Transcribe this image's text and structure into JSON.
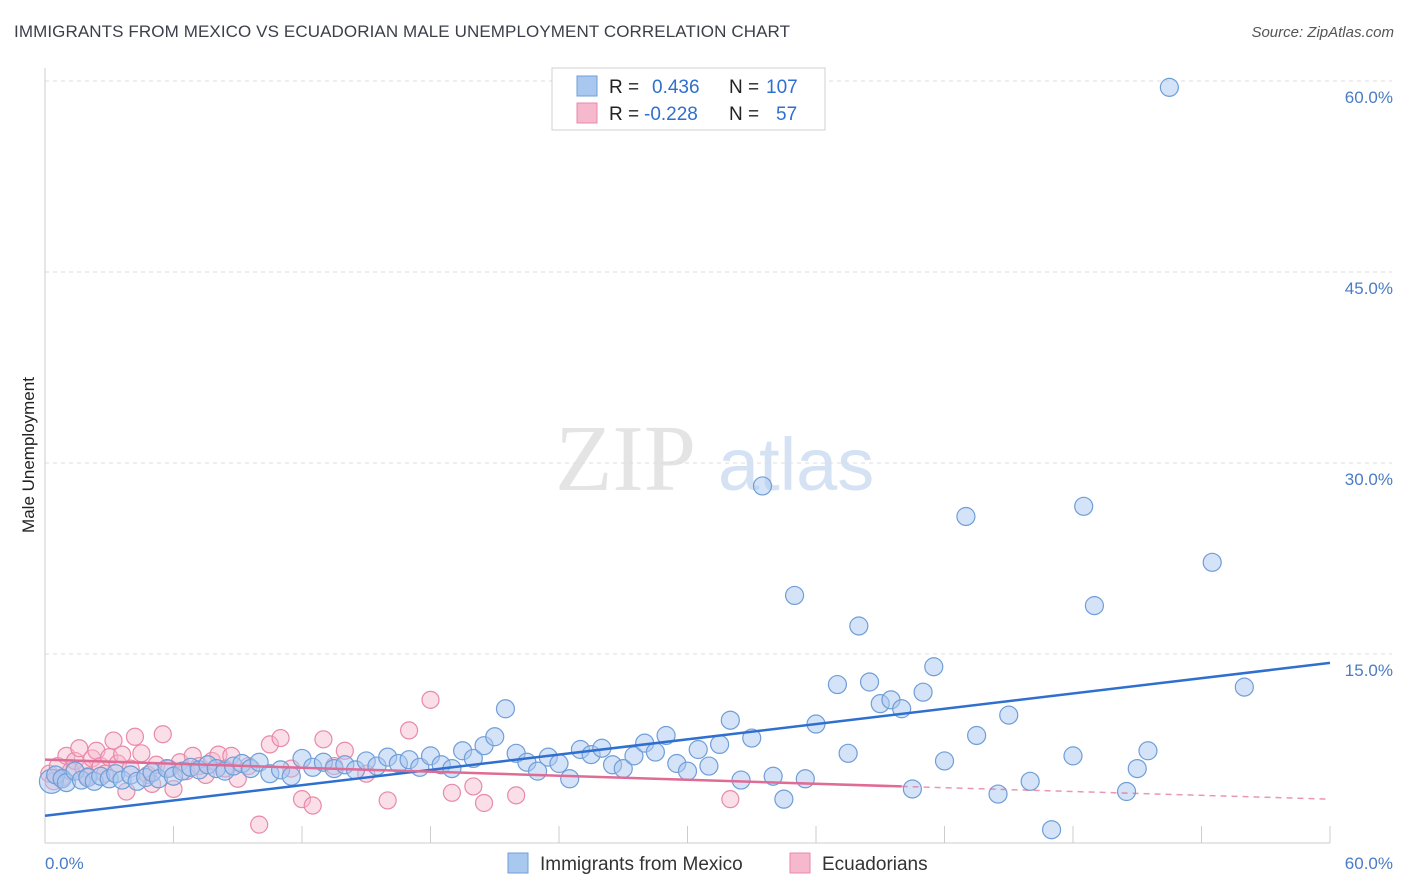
{
  "title": "IMMIGRANTS FROM MEXICO VS ECUADORIAN MALE UNEMPLOYMENT CORRELATION CHART",
  "source": "Source: ZipAtlas.com",
  "watermark": {
    "zip": "ZIP",
    "atlas": "atlas"
  },
  "colors": {
    "blue_fill": "#a9c8f0",
    "blue_stroke": "#6f9ed8",
    "blue_line": "#2f6fcf",
    "pink_fill": "#f6b8cc",
    "pink_stroke": "#e88aa8",
    "pink_line": "#e06b95",
    "tick_text": "#4a7cc4",
    "grid": "#dddddd"
  },
  "legend": {
    "rows": [
      {
        "r_label": "R =",
        "r_value": "0.436",
        "n_label": "N =",
        "n_value": "107"
      },
      {
        "r_label": "R =",
        "r_value": "-0.228",
        "n_label": "N =",
        "n_value": "57"
      }
    ]
  },
  "bottom_legend": [
    "Immigrants from Mexico",
    "Ecuadorians"
  ],
  "chart_data": {
    "type": "scatter",
    "title": "IMMIGRANTS FROM MEXICO VS ECUADORIAN MALE UNEMPLOYMENT CORRELATION CHART",
    "xlabel": "",
    "ylabel": "Male Unemployment",
    "xlim": [
      0,
      60
    ],
    "ylim": [
      0,
      63
    ],
    "x_tick_labels": [
      "0.0%",
      "60.0%"
    ],
    "y_ticks": [
      15,
      30,
      45,
      60
    ],
    "y_tick_labels": [
      "15.0%",
      "30.0%",
      "45.0%",
      "60.0%"
    ],
    "grid": true,
    "series": [
      {
        "name": "Immigrants from Mexico",
        "r": 0.436,
        "n": 107,
        "trend": {
          "x": [
            0,
            60
          ],
          "y": [
            2.3,
            14.3
          ]
        },
        "points": [
          [
            0.3,
            5.0
          ],
          [
            0.5,
            5.5
          ],
          [
            0.8,
            5.2
          ],
          [
            1.0,
            4.9
          ],
          [
            1.4,
            5.8
          ],
          [
            1.7,
            5.1
          ],
          [
            2.0,
            5.3
          ],
          [
            2.3,
            5.0
          ],
          [
            2.6,
            5.4
          ],
          [
            3.0,
            5.2
          ],
          [
            3.3,
            5.6
          ],
          [
            3.6,
            5.1
          ],
          [
            4.0,
            5.5
          ],
          [
            4.3,
            5.0
          ],
          [
            4.7,
            5.3
          ],
          [
            5.0,
            5.7
          ],
          [
            5.3,
            5.2
          ],
          [
            5.7,
            6.0
          ],
          [
            6.0,
            5.4
          ],
          [
            6.4,
            5.8
          ],
          [
            6.8,
            6.1
          ],
          [
            7.2,
            5.9
          ],
          [
            7.6,
            6.3
          ],
          [
            8.0,
            6.0
          ],
          [
            8.4,
            5.8
          ],
          [
            8.8,
            6.2
          ],
          [
            9.2,
            6.4
          ],
          [
            9.6,
            6.0
          ],
          [
            10.0,
            6.5
          ],
          [
            10.5,
            5.6
          ],
          [
            11.0,
            5.9
          ],
          [
            11.5,
            5.4
          ],
          [
            12.0,
            6.8
          ],
          [
            12.5,
            6.1
          ],
          [
            13.0,
            6.5
          ],
          [
            13.5,
            6.0
          ],
          [
            14.0,
            6.3
          ],
          [
            14.5,
            5.9
          ],
          [
            15.0,
            6.6
          ],
          [
            15.5,
            6.2
          ],
          [
            16.0,
            6.9
          ],
          [
            16.5,
            6.4
          ],
          [
            17.0,
            6.7
          ],
          [
            17.5,
            6.1
          ],
          [
            18.0,
            7.0
          ],
          [
            18.5,
            6.3
          ],
          [
            19.0,
            6.0
          ],
          [
            19.5,
            7.4
          ],
          [
            20.0,
            6.8
          ],
          [
            20.5,
            7.8
          ],
          [
            21.0,
            8.5
          ],
          [
            21.5,
            10.7
          ],
          [
            22.0,
            7.2
          ],
          [
            22.5,
            6.5
          ],
          [
            23.0,
            5.8
          ],
          [
            23.5,
            6.9
          ],
          [
            24.0,
            6.4
          ],
          [
            24.5,
            5.2
          ],
          [
            25.0,
            7.5
          ],
          [
            25.5,
            7.1
          ],
          [
            26.0,
            7.6
          ],
          [
            26.5,
            6.3
          ],
          [
            27.0,
            6.0
          ],
          [
            27.5,
            7.0
          ],
          [
            28.0,
            8.0
          ],
          [
            28.5,
            7.3
          ],
          [
            29.0,
            8.6
          ],
          [
            29.5,
            6.4
          ],
          [
            30.0,
            5.8
          ],
          [
            30.5,
            7.5
          ],
          [
            31.0,
            6.2
          ],
          [
            31.5,
            7.9
          ],
          [
            32.0,
            9.8
          ],
          [
            32.5,
            5.1
          ],
          [
            33.0,
            8.4
          ],
          [
            33.5,
            28.2
          ],
          [
            34.0,
            5.4
          ],
          [
            34.5,
            3.6
          ],
          [
            35.0,
            19.6
          ],
          [
            35.5,
            5.2
          ],
          [
            36.0,
            9.5
          ],
          [
            37.0,
            12.6
          ],
          [
            37.5,
            7.2
          ],
          [
            38.0,
            17.2
          ],
          [
            38.5,
            12.8
          ],
          [
            39.0,
            11.1
          ],
          [
            39.5,
            11.4
          ],
          [
            40.0,
            10.7
          ],
          [
            40.5,
            4.4
          ],
          [
            41.0,
            12.0
          ],
          [
            41.5,
            14.0
          ],
          [
            42.0,
            6.6
          ],
          [
            43.0,
            25.8
          ],
          [
            43.5,
            8.6
          ],
          [
            44.5,
            4.0
          ],
          [
            45.0,
            10.2
          ],
          [
            46.0,
            5.0
          ],
          [
            47.0,
            1.2
          ],
          [
            48.0,
            7.0
          ],
          [
            48.5,
            26.6
          ],
          [
            49.0,
            18.8
          ],
          [
            50.5,
            4.2
          ],
          [
            51.0,
            6.0
          ],
          [
            51.5,
            7.4
          ],
          [
            52.5,
            59.5
          ],
          [
            54.5,
            22.2
          ],
          [
            56.0,
            12.4
          ]
        ]
      },
      {
        "name": "Ecuadorians",
        "r": -0.228,
        "n": 57,
        "trend": {
          "x": [
            0,
            40
          ],
          "y": [
            6.7,
            4.6
          ]
        },
        "trend_dashed": {
          "x": [
            40,
            60
          ],
          "y": [
            4.6,
            3.6
          ]
        },
        "points": [
          [
            0.2,
            5.6
          ],
          [
            0.4,
            5.0
          ],
          [
            0.6,
            6.2
          ],
          [
            0.8,
            5.3
          ],
          [
            1.0,
            7.0
          ],
          [
            1.2,
            5.8
          ],
          [
            1.4,
            6.6
          ],
          [
            1.6,
            7.6
          ],
          [
            1.8,
            6.0
          ],
          [
            2.0,
            5.4
          ],
          [
            2.2,
            6.8
          ],
          [
            2.4,
            7.4
          ],
          [
            2.6,
            6.2
          ],
          [
            2.8,
            5.6
          ],
          [
            3.0,
            6.9
          ],
          [
            3.2,
            8.2
          ],
          [
            3.4,
            6.4
          ],
          [
            3.6,
            7.1
          ],
          [
            3.8,
            4.2
          ],
          [
            4.0,
            6.0
          ],
          [
            4.2,
            8.5
          ],
          [
            4.5,
            7.2
          ],
          [
            4.8,
            5.5
          ],
          [
            5.0,
            4.8
          ],
          [
            5.2,
            6.3
          ],
          [
            5.5,
            8.7
          ],
          [
            5.8,
            6.0
          ],
          [
            6.0,
            4.4
          ],
          [
            6.3,
            6.5
          ],
          [
            6.6,
            5.8
          ],
          [
            6.9,
            7.0
          ],
          [
            7.2,
            6.2
          ],
          [
            7.5,
            5.5
          ],
          [
            7.8,
            6.6
          ],
          [
            8.1,
            7.1
          ],
          [
            8.4,
            6.0
          ],
          [
            8.7,
            7.0
          ],
          [
            9.0,
            5.2
          ],
          [
            9.5,
            6.2
          ],
          [
            10.0,
            1.6
          ],
          [
            10.5,
            7.9
          ],
          [
            11.0,
            8.4
          ],
          [
            11.5,
            6.0
          ],
          [
            12.0,
            3.6
          ],
          [
            12.5,
            3.1
          ],
          [
            13.0,
            8.3
          ],
          [
            13.5,
            6.2
          ],
          [
            14.0,
            7.4
          ],
          [
            15.0,
            5.6
          ],
          [
            16.0,
            3.5
          ],
          [
            17.0,
            9.0
          ],
          [
            18.0,
            11.4
          ],
          [
            19.0,
            4.1
          ],
          [
            20.0,
            4.6
          ],
          [
            20.5,
            3.3
          ],
          [
            22.0,
            3.9
          ],
          [
            32.0,
            3.6
          ]
        ]
      }
    ]
  }
}
